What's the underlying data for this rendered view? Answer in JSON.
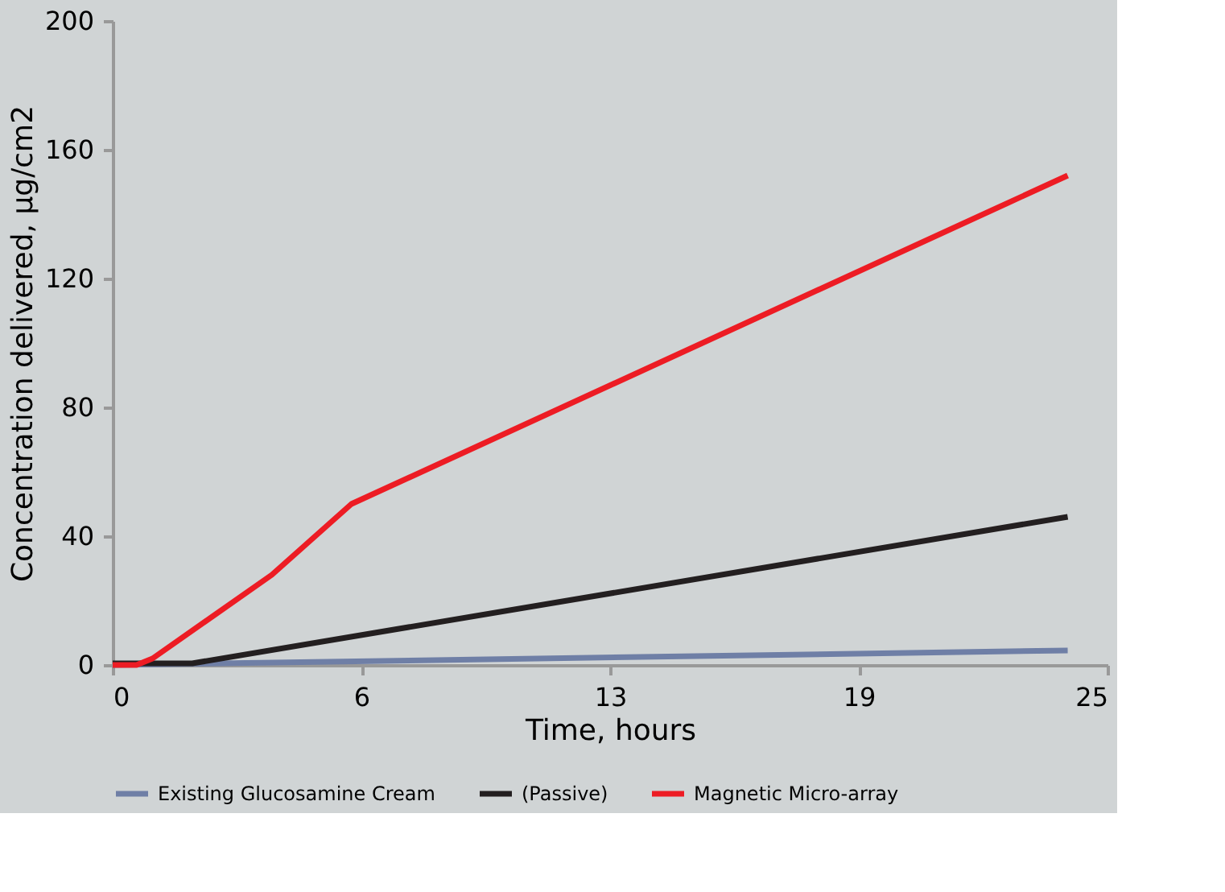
{
  "chart_data": {
    "type": "line",
    "xlabel": "Time, hours",
    "ylabel": "Concentration delivered, µg/cm2",
    "xlim": [
      0,
      25
    ],
    "xticks": [
      0,
      {
        "value": 6.25,
        "label": "6"
      },
      {
        "value": 12.5,
        "label": "13"
      },
      {
        "value": 18.75,
        "label": "19"
      },
      25
    ],
    "ylim": [
      0,
      200
    ],
    "yticks": [
      0,
      40,
      80,
      120,
      160,
      200
    ],
    "grid": false,
    "legend": "bottom",
    "marker": "none",
    "line_style": "solid",
    "series": [
      {
        "name": "Existing Glucosamine Cream",
        "color": "#6f7fa6",
        "x": [
          0,
          24
        ],
        "values": [
          0,
          4.5
        ]
      },
      {
        "name": "(Passive)",
        "color": "#231f20",
        "x": [
          0,
          2,
          24
        ],
        "values": [
          0.5,
          0.5,
          46
        ]
      },
      {
        "name": "Magnetic Micro-array",
        "color": "#ed1c24",
        "x": [
          0,
          0.6,
          1,
          4,
          6,
          24
        ],
        "values": [
          0,
          0,
          2,
          28,
          50,
          152
        ]
      }
    ]
  }
}
